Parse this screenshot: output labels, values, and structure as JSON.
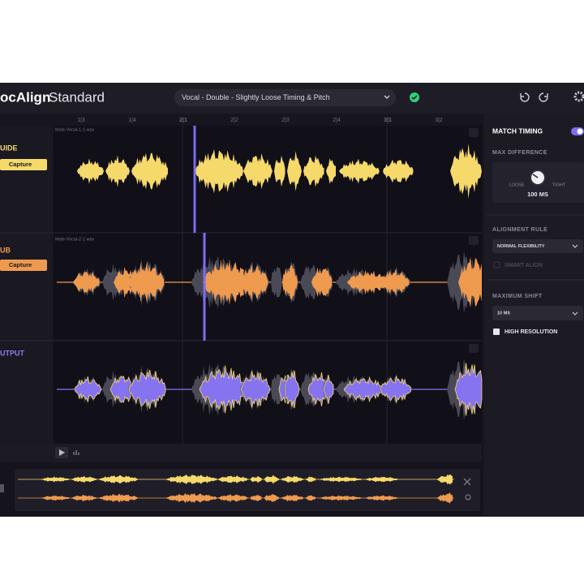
{
  "header": {
    "app_name": "ocAlign",
    "edition": "Standard",
    "preset": "Vocal - Double - Slightly Loose Timing & Pitch"
  },
  "ruler": [
    "1|3",
    "1|4",
    "2|1",
    "2|2",
    "2|3",
    "2|4",
    "3|1",
    "3|2"
  ],
  "tracks": [
    {
      "name": "UIDE",
      "button": "Capture",
      "file": "Male-Vocal-1-1.wav"
    },
    {
      "name": "UB",
      "button": "Capture",
      "file": "Male-Vocal-2-1.wav"
    },
    {
      "name": "UTPUT"
    }
  ],
  "panel": {
    "title": "MATCH TIMING",
    "max_difference": {
      "label": "MAX DIFFERENCE",
      "left": "LOOSE",
      "right": "TIGHT",
      "value": "100 MS"
    },
    "alignment_rule": {
      "label": "ALIGNMENT RULE",
      "value": "NORMAL FLEXIBILITY"
    },
    "smart_align": "SMART ALIGN",
    "maximum_shift": {
      "label": "MAXIMUM SHIFT",
      "value": "10 MS"
    },
    "high_resolution": "HIGH RESOLUTION"
  }
}
